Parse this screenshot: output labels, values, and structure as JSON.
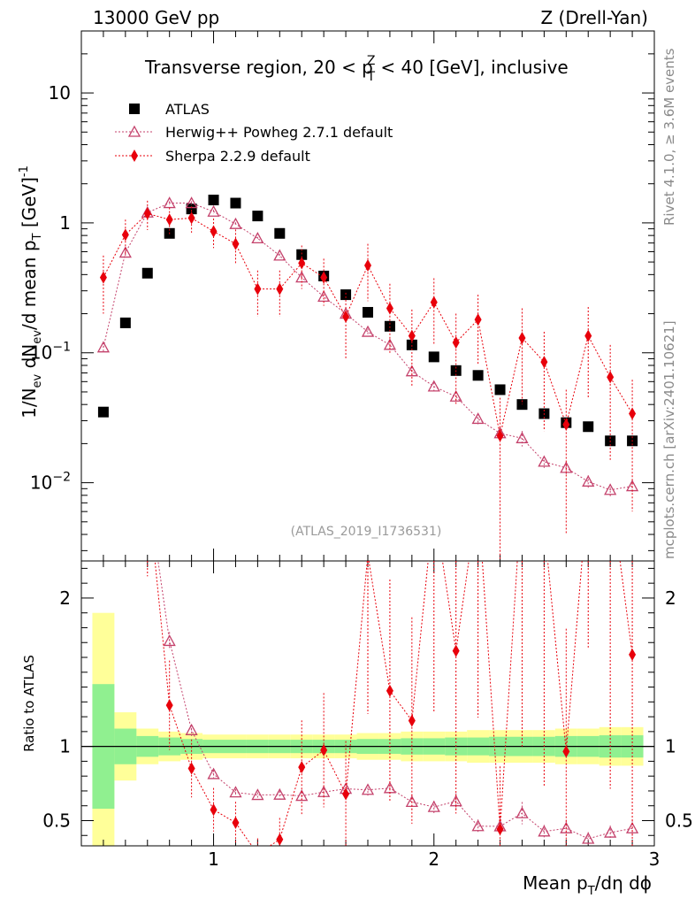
{
  "header": {
    "left": "13000 GeV pp",
    "right": "Z (Drell-Yan)"
  },
  "side_labels": {
    "rivet": "Rivet 4.1.0, ≥ 3.6M events",
    "mcplots": "mcplots.cern.ch [arXiv:2401.10621]"
  },
  "chart_data": {
    "type": "scatter",
    "title": "Transverse region, 20 < p_T^Z < 40 [GeV], inclusive",
    "title_parts": {
      "before": "Transverse region, 20 < p",
      "sup": "Z",
      "sub": "T",
      "after": " < 40 [GeV], inclusive"
    },
    "analysis_id": "(ATLAS_2019_I1736531)",
    "xlabel": "Mean p_T/dη dϕ",
    "xlabel_parts": {
      "main": "Mean p",
      "sub": "T",
      "rest": "/dη dϕ"
    },
    "ylabel": "1/N_ev dN_ev/d mean p_T [GeV]^-1",
    "ylabel_parts": {
      "a": "1/N",
      "a_sub": "ev",
      "b": " dN",
      "b_sub": "ev",
      "c": "/d mean p",
      "c_sub": "T",
      "d": " [GeV]",
      "d_sup": "-1"
    },
    "ratio_ylabel": "Ratio to ATLAS",
    "xlim": [
      0.4,
      3.0
    ],
    "ylim": [
      0.0025,
      30
    ],
    "yscale": "log",
    "ratio_ylim": [
      0.33,
      2.25
    ],
    "x_ticks": [
      {
        "v": 1,
        "label": "1"
      },
      {
        "v": 2,
        "label": "2"
      },
      {
        "v": 3,
        "label": "3"
      }
    ],
    "y_ticks": [
      {
        "v": 0.01,
        "base": "10",
        "exp": "−2"
      },
      {
        "v": 0.1,
        "base": "10",
        "exp": "−1"
      },
      {
        "v": 1,
        "base": "1",
        "exp": ""
      },
      {
        "v": 10,
        "base": "10",
        "exp": ""
      }
    ],
    "ratio_ticks": [
      {
        "v": 0.5,
        "label": "0.5"
      },
      {
        "v": 1,
        "label": "1"
      },
      {
        "v": 2,
        "label": "2"
      }
    ],
    "legend_position": "top-left",
    "x": [
      0.5,
      0.6,
      0.7,
      0.8,
      0.9,
      1.0,
      1.1,
      1.2,
      1.3,
      1.4,
      1.5,
      1.6,
      1.7,
      1.8,
      1.9,
      2.0,
      2.1,
      2.2,
      2.3,
      2.4,
      2.5,
      2.6,
      2.7,
      2.8,
      2.9
    ],
    "band_edges": [
      0.45,
      0.55,
      0.65,
      0.75,
      0.85,
      0.95,
      1.05,
      1.15,
      1.25,
      1.35,
      1.45,
      1.55,
      1.65,
      1.75,
      1.85,
      1.95,
      2.05,
      2.15,
      2.25,
      2.35,
      2.45,
      2.55,
      2.65,
      2.75,
      2.85,
      2.95
    ],
    "band_green": [
      0.42,
      0.12,
      0.07,
      0.06,
      0.05,
      0.045,
      0.045,
      0.045,
      0.045,
      0.045,
      0.045,
      0.045,
      0.05,
      0.05,
      0.055,
      0.055,
      0.06,
      0.06,
      0.065,
      0.065,
      0.065,
      0.07,
      0.07,
      0.075,
      0.075
    ],
    "band_yellow": [
      0.9,
      0.23,
      0.12,
      0.1,
      0.09,
      0.08,
      0.08,
      0.08,
      0.08,
      0.08,
      0.08,
      0.08,
      0.09,
      0.09,
      0.1,
      0.1,
      0.1,
      0.11,
      0.11,
      0.11,
      0.11,
      0.12,
      0.12,
      0.13,
      0.13
    ],
    "series": [
      {
        "name": "ATLAS",
        "color": "#000000",
        "marker": "square",
        "values": [
          0.035,
          0.17,
          0.41,
          0.83,
          1.28,
          1.5,
          1.42,
          1.13,
          0.83,
          0.57,
          0.39,
          0.28,
          0.205,
          0.16,
          0.115,
          0.093,
          0.073,
          0.067,
          0.052,
          0.04,
          0.034,
          0.029,
          0.027,
          0.021,
          0.021
        ]
      },
      {
        "name": "Herwig++ Powheg 2.7.1 default",
        "color": "#c4416b",
        "marker": "open-triangle",
        "values": [
          0.11,
          0.59,
          1.2,
          1.42,
          1.42,
          1.22,
          0.98,
          0.76,
          0.56,
          0.38,
          0.27,
          0.2,
          0.145,
          0.115,
          0.072,
          0.055,
          0.046,
          0.031,
          0.024,
          0.022,
          0.0145,
          0.013,
          0.0102,
          0.0088,
          0.0094
        ],
        "errors": [
          0.01,
          0.03,
          0.05,
          0.05,
          0.05,
          0.04,
          0.03,
          0.02,
          0.02,
          0.015,
          0.012,
          0.01,
          0.008,
          0.007,
          0.006,
          0.004,
          0.004,
          0.003,
          0.003,
          0.003,
          0.0015,
          0.0015,
          0.0012,
          0.001,
          0.0012
        ]
      },
      {
        "name": "Sherpa 2.2.9 default",
        "color": "#e8000b",
        "marker": "diamond",
        "values": [
          0.38,
          0.81,
          1.18,
          1.06,
          1.09,
          0.86,
          0.69,
          0.31,
          0.31,
          0.49,
          0.38,
          0.19,
          0.47,
          0.22,
          0.135,
          0.245,
          0.12,
          0.18,
          0.023,
          0.13,
          0.085,
          0.028,
          0.135,
          0.065,
          0.034
        ],
        "errors": [
          0.18,
          0.25,
          0.3,
          0.25,
          0.25,
          0.22,
          0.2,
          0.12,
          0.12,
          0.18,
          0.15,
          0.1,
          0.22,
          0.12,
          0.08,
          0.13,
          0.08,
          0.1,
          0.022,
          0.09,
          0.06,
          0.024,
          0.09,
          0.05,
          0.028
        ]
      }
    ]
  }
}
